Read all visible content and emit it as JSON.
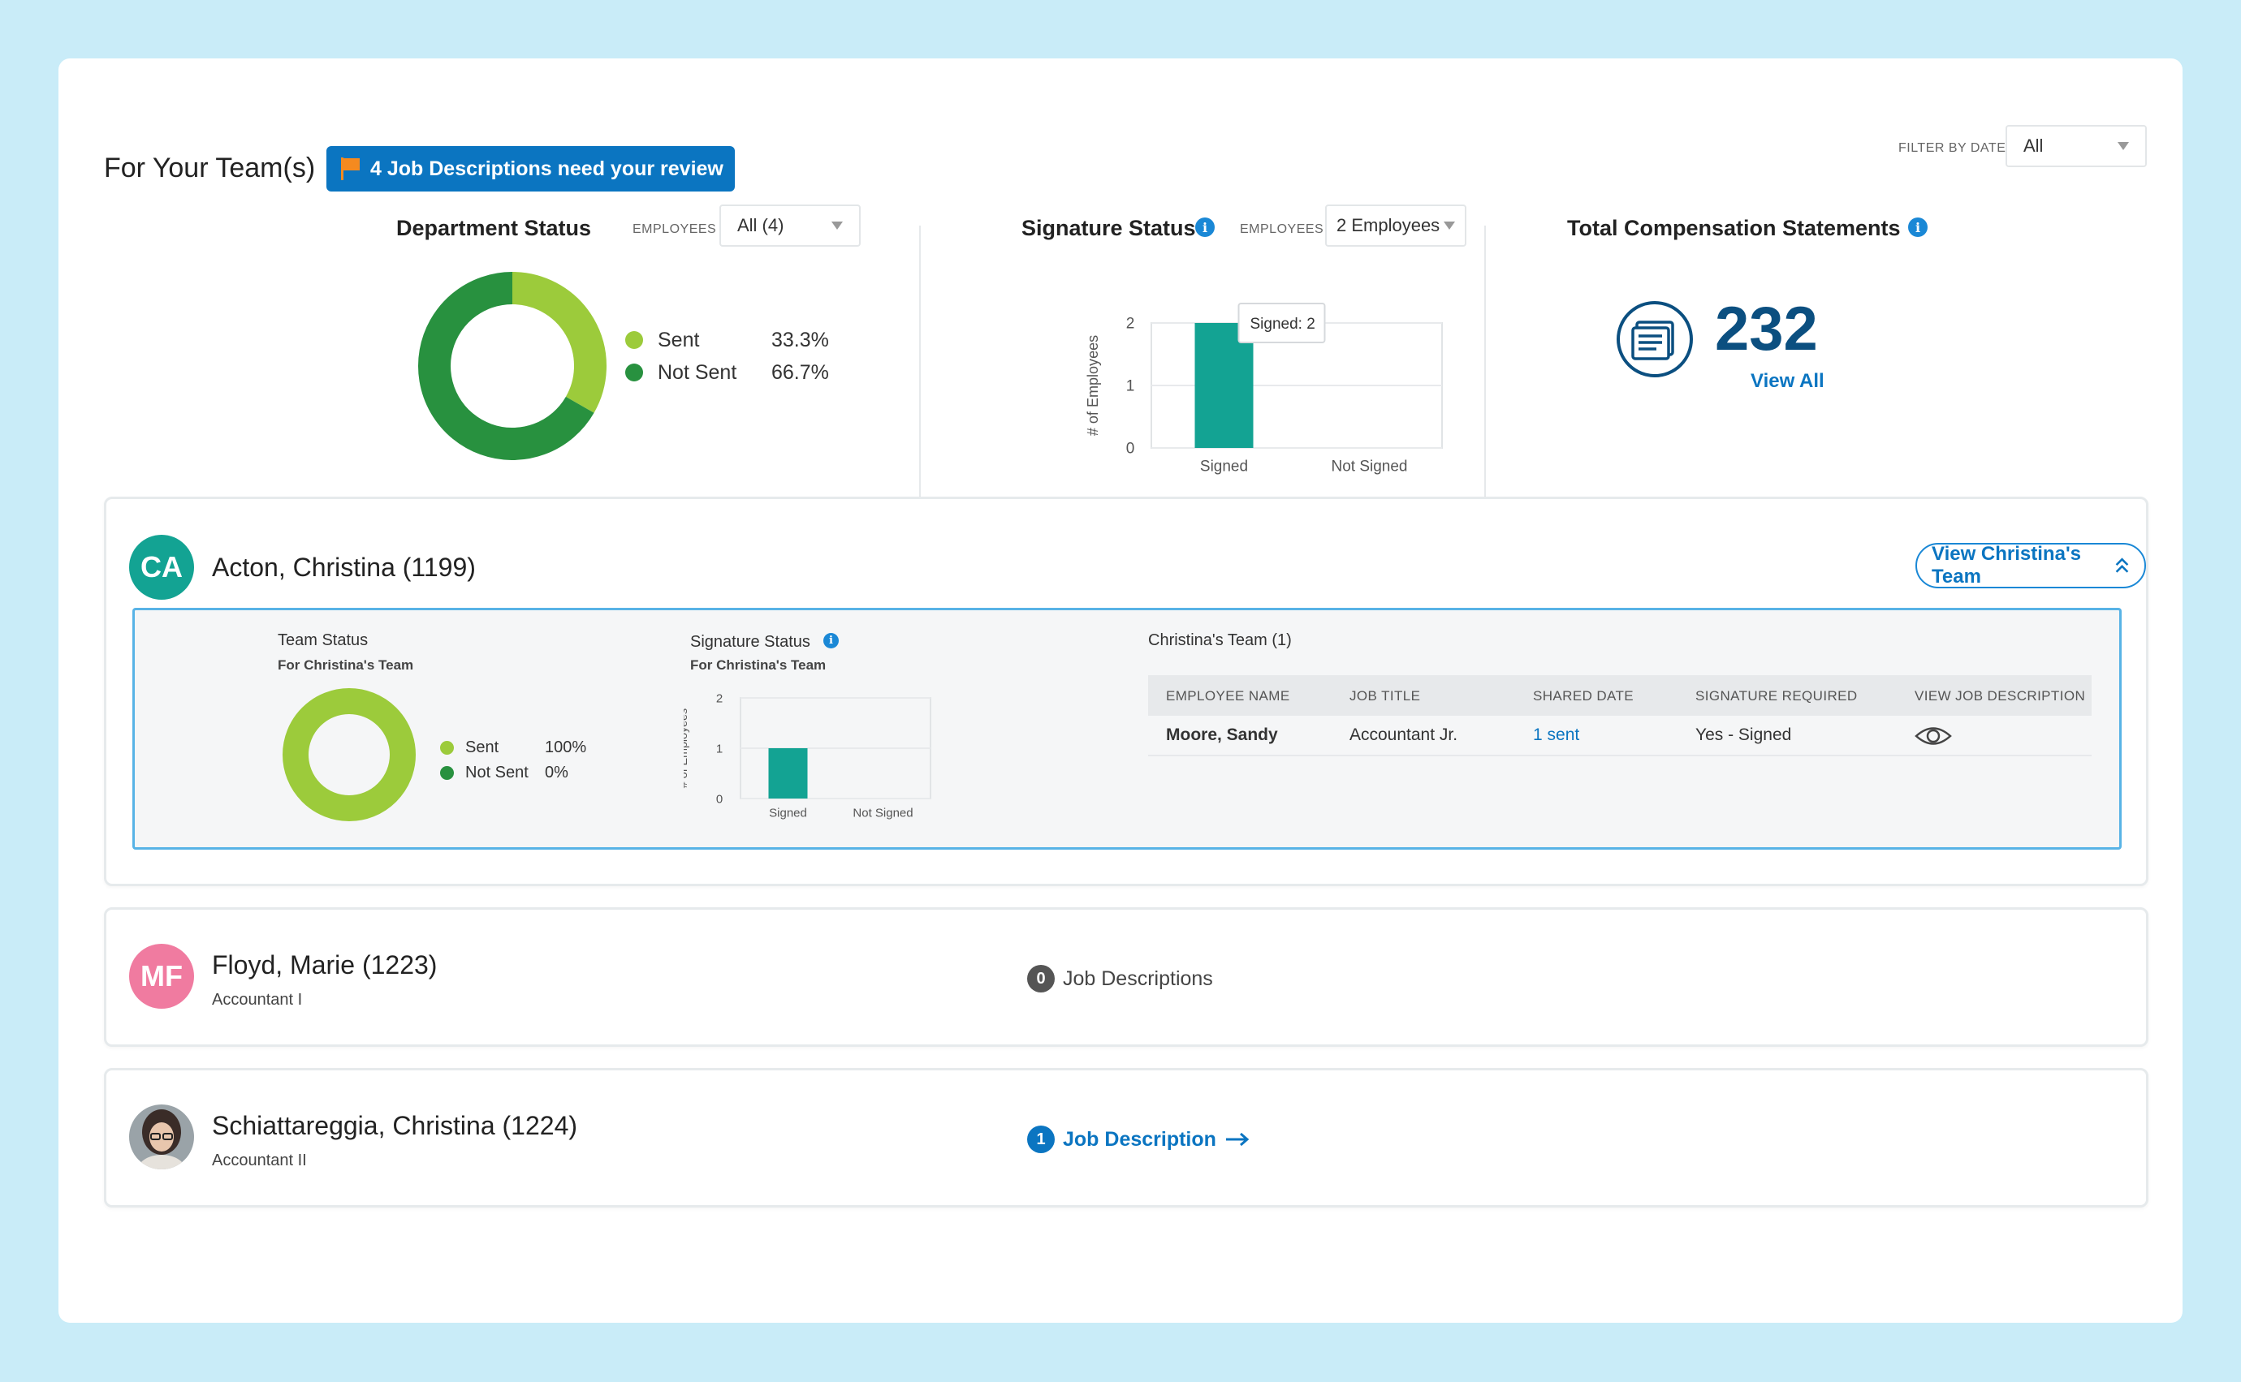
{
  "header": {
    "title": "For Your Team(s)",
    "review_button": "4 Job Descriptions need your review",
    "filter_label": "FILTER BY DATE",
    "filter_value": "All"
  },
  "department_status": {
    "title": "Department Status",
    "employees_label": "EMPLOYEES",
    "employees_value": "All (4)",
    "legend": [
      {
        "label": "Sent",
        "value": "33.3%",
        "color": "#9ccb3b"
      },
      {
        "label": "Not Sent",
        "value": "66.7%",
        "color": "#28913f"
      }
    ]
  },
  "signature_status": {
    "title": "Signature Status",
    "info": "i",
    "employees_label": "EMPLOYEES",
    "employees_value": "2 Employees",
    "tooltip": "Signed: 2"
  },
  "compensation": {
    "title": "Total Compensation Statements",
    "info": "i",
    "count": "232",
    "view_all": "View All"
  },
  "chart_data": [
    {
      "type": "pie",
      "categories": [
        "Sent",
        "Not Sent"
      ],
      "values": [
        33.3,
        66.7
      ],
      "colors": [
        "#9ccb3b",
        "#28913f"
      ]
    },
    {
      "type": "bar",
      "categories": [
        "Signed",
        "Not Signed"
      ],
      "values": [
        2,
        0
      ],
      "ylabel": "# of Employees",
      "yticks": [
        "0",
        "1",
        "2"
      ],
      "ylim": [
        0,
        2
      ],
      "color": "#13a393",
      "grid": true
    },
    {
      "type": "pie",
      "categories": [
        "Sent",
        "Not Sent"
      ],
      "values": [
        100,
        0
      ],
      "colors": [
        "#9ccb3b",
        "#28913f"
      ]
    },
    {
      "type": "bar",
      "categories": [
        "Signed",
        "Not Signed"
      ],
      "values": [
        1,
        0
      ],
      "ylabel": "# of Employees",
      "yticks": [
        "0",
        "1",
        "2"
      ],
      "ylim": [
        0,
        2
      ],
      "color": "#13a393",
      "grid": true
    }
  ],
  "people": [
    {
      "initials": "CA",
      "name": "Acton, Christina (1199)",
      "avatar_color": "#13a393",
      "team_button": "View Christina's Team",
      "team_status": {
        "title": "Team Status",
        "subtitle": "For Christina's Team",
        "legend": [
          {
            "label": "Sent",
            "value": "100%"
          },
          {
            "label": "Not Sent",
            "value": "0%"
          }
        ]
      },
      "signature_status": {
        "title": "Signature Status",
        "info": "i",
        "subtitle": "For Christina's Team"
      },
      "team_table": {
        "title": "Christina's Team (1)",
        "columns": [
          "EMPLOYEE NAME",
          "JOB TITLE",
          "SHARED DATE",
          "SIGNATURE REQUIRED",
          "VIEW JOB DESCRIPTION"
        ],
        "rows": [
          {
            "name": "Moore, Sandy",
            "job_title": "Accountant Jr.",
            "shared": "1 sent",
            "signature": "Yes - Signed"
          }
        ]
      }
    },
    {
      "initials": "MF",
      "name": "Floyd, Marie (1223)",
      "subtitle": "Accountant I",
      "avatar_color": "#f07ba0",
      "job_count": "0",
      "job_label": "Job Descriptions"
    },
    {
      "name": "Schiattareggia, Christina (1224)",
      "subtitle": "Accountant II",
      "job_count": "1",
      "job_label": "Job Description"
    }
  ]
}
